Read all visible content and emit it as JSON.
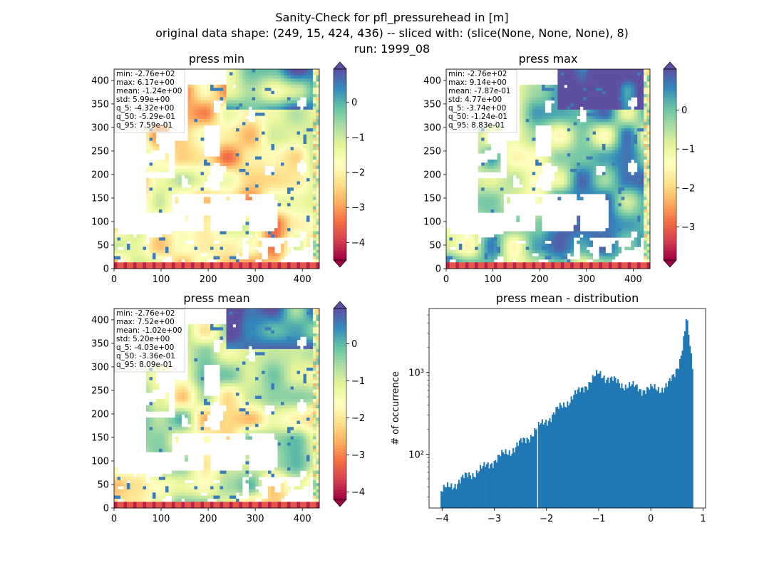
{
  "figure": {
    "title_lines": [
      "Sanity-Check for pfl_pressurehead in [m]",
      "original data shape: (249, 15, 424, 436) -- sliced with: (slice(None, None, None), 8)",
      "run: 1999_08"
    ]
  },
  "chart_data": [
    {
      "type": "heatmap",
      "title": "press min",
      "x_ticks": [
        "0",
        "100",
        "200",
        "300",
        "400"
      ],
      "y_ticks": [
        "0",
        "50",
        "100",
        "150",
        "200",
        "250",
        "300",
        "350",
        "400"
      ],
      "xlim": [
        0,
        436
      ],
      "ylim": [
        0,
        424
      ],
      "colorbar": {
        "colormap": "Spectral",
        "range": [
          -4.5,
          0.95
        ],
        "ticks": [
          "0",
          "−1",
          "−2",
          "−3",
          "−4"
        ],
        "tick_values": [
          0,
          -1,
          -2,
          -3,
          -4
        ],
        "extend": "both"
      },
      "stats": [
        "min: -2.76e+02",
        "max: 6.17e+00",
        "mean: -1.24e+00",
        "std: 5.99e+00",
        "q_5: -4.32e+00",
        "q_50: -5.29e-01",
        "q_95: 7.59e-01"
      ]
    },
    {
      "type": "heatmap",
      "title": "press max",
      "x_ticks": [
        "0",
        "100",
        "200",
        "300",
        "400"
      ],
      "y_ticks": [
        "0",
        "50",
        "100",
        "150",
        "200",
        "250",
        "300",
        "350",
        "400"
      ],
      "xlim": [
        0,
        436
      ],
      "ylim": [
        0,
        424
      ],
      "colorbar": {
        "colormap": "Spectral",
        "range": [
          -3.85,
          1.05
        ],
        "ticks": [
          "0",
          "−1",
          "−2",
          "−3"
        ],
        "tick_values": [
          0,
          -1,
          -2,
          -3
        ],
        "extend": "both"
      },
      "stats": [
        "min: -2.76e+02",
        "max: 9.14e+00",
        "mean: -7.87e-01",
        "std: 4.77e+00",
        "q_5: -3.74e+00",
        "q_50: -1.24e-01",
        "q_95: 8.83e-01"
      ]
    },
    {
      "type": "heatmap",
      "title": "press mean",
      "x_ticks": [
        "0",
        "100",
        "200",
        "300",
        "400"
      ],
      "y_ticks": [
        "0",
        "50",
        "100",
        "150",
        "200",
        "250",
        "300",
        "350",
        "400"
      ],
      "xlim": [
        0,
        436
      ],
      "ylim": [
        0,
        424
      ],
      "colorbar": {
        "colormap": "Spectral",
        "range": [
          -4.2,
          0.95
        ],
        "ticks": [
          "0",
          "−1",
          "−2",
          "−3",
          "−4"
        ],
        "tick_values": [
          0,
          -1,
          -2,
          -3,
          -4
        ],
        "extend": "both"
      },
      "stats": [
        "min: -2.76e+02",
        "max: 7.52e+00",
        "mean: -1.02e+00",
        "std: 5.20e+00",
        "q_5: -4.03e+00",
        "q_50: -3.36e-01",
        "q_95: 8.09e-01"
      ]
    },
    {
      "type": "bar",
      "title": "press mean - distribution",
      "ylabel": "# of occurrence",
      "yscale": "log",
      "xlim": [
        -4.25,
        1.05
      ],
      "ylim": [
        22,
        6000
      ],
      "x_ticks": [
        "−4",
        "−3",
        "−2",
        "−1",
        "0",
        "1"
      ],
      "x_tick_values": [
        -4,
        -3,
        -2,
        -1,
        0,
        1
      ],
      "y_ticks": [
        "10²",
        "10³"
      ],
      "y_tick_values": [
        100,
        1000
      ],
      "bin_range": [
        -4.03,
        0.81
      ],
      "bin_count": 200,
      "gap_at": -2.17,
      "anchors": [
        [
          -4.03,
          35
        ],
        [
          -3.8,
          42
        ],
        [
          -3.5,
          55
        ],
        [
          -3.2,
          68
        ],
        [
          -3.0,
          85
        ],
        [
          -2.7,
          110
        ],
        [
          -2.4,
          150
        ],
        [
          -2.2,
          200
        ],
        [
          -2.0,
          260
        ],
        [
          -1.8,
          340
        ],
        [
          -1.6,
          440
        ],
        [
          -1.4,
          560
        ],
        [
          -1.25,
          700
        ],
        [
          -1.1,
          830
        ],
        [
          -1.0,
          960
        ],
        [
          -0.9,
          920
        ],
        [
          -0.8,
          830
        ],
        [
          -0.6,
          730
        ],
        [
          -0.4,
          680
        ],
        [
          -0.2,
          630
        ],
        [
          0.0,
          620
        ],
        [
          0.2,
          640
        ],
        [
          0.35,
          720
        ],
        [
          0.45,
          900
        ],
        [
          0.55,
          1400
        ],
        [
          0.62,
          2400
        ],
        [
          0.66,
          3500
        ],
        [
          0.68,
          4700
        ],
        [
          0.72,
          3000
        ],
        [
          0.76,
          1700
        ],
        [
          0.8,
          1100
        ]
      ]
    }
  ]
}
